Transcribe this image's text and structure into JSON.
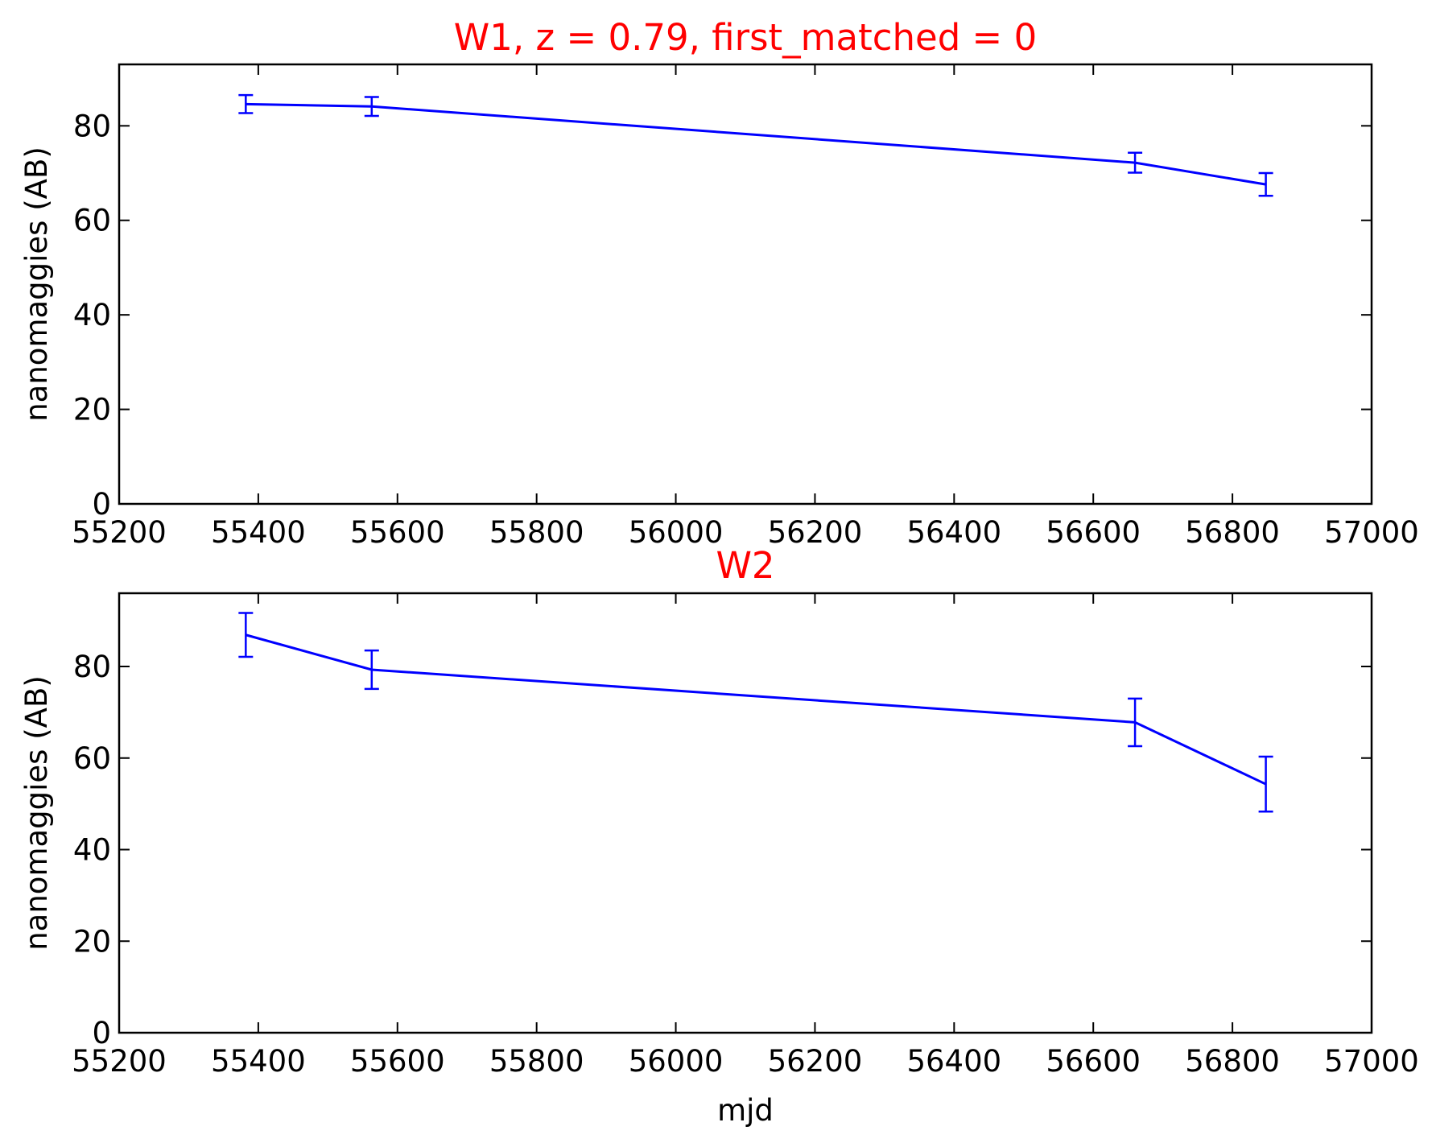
{
  "chart_data": [
    {
      "type": "line",
      "title": "W1, z = 0.79, first_matched = 0",
      "title_color": "#ff0000",
      "xlabel": "",
      "ylabel": "nanomaggies (AB)",
      "xlim": [
        55200,
        57000
      ],
      "ylim": [
        0,
        93
      ],
      "x_ticks": [
        55200,
        55400,
        55600,
        55800,
        56000,
        56200,
        56400,
        56600,
        56800,
        57000
      ],
      "y_ticks": [
        0,
        20,
        40,
        60,
        80
      ],
      "grid": false,
      "series": [
        {
          "color": "#0000ff",
          "x": [
            55382,
            55563,
            56660,
            56848
          ],
          "y": [
            84.6,
            84.1,
            72.2,
            67.6
          ],
          "yerr": [
            1.9,
            2.0,
            2.1,
            2.4
          ]
        }
      ]
    },
    {
      "type": "line",
      "title": "W2",
      "title_color": "#ff0000",
      "xlabel": "mjd",
      "ylabel": "nanomaggies (AB)",
      "xlim": [
        55200,
        57000
      ],
      "ylim": [
        0,
        96
      ],
      "x_ticks": [
        55200,
        55400,
        55600,
        55800,
        56000,
        56200,
        56400,
        56600,
        56800,
        57000
      ],
      "y_ticks": [
        0,
        20,
        40,
        60,
        80
      ],
      "grid": false,
      "series": [
        {
          "color": "#0000ff",
          "x": [
            55382,
            55563,
            56660,
            56848
          ],
          "y": [
            86.9,
            79.3,
            67.8,
            54.3
          ],
          "yerr": [
            4.8,
            4.2,
            5.2,
            6.0
          ]
        }
      ]
    }
  ]
}
